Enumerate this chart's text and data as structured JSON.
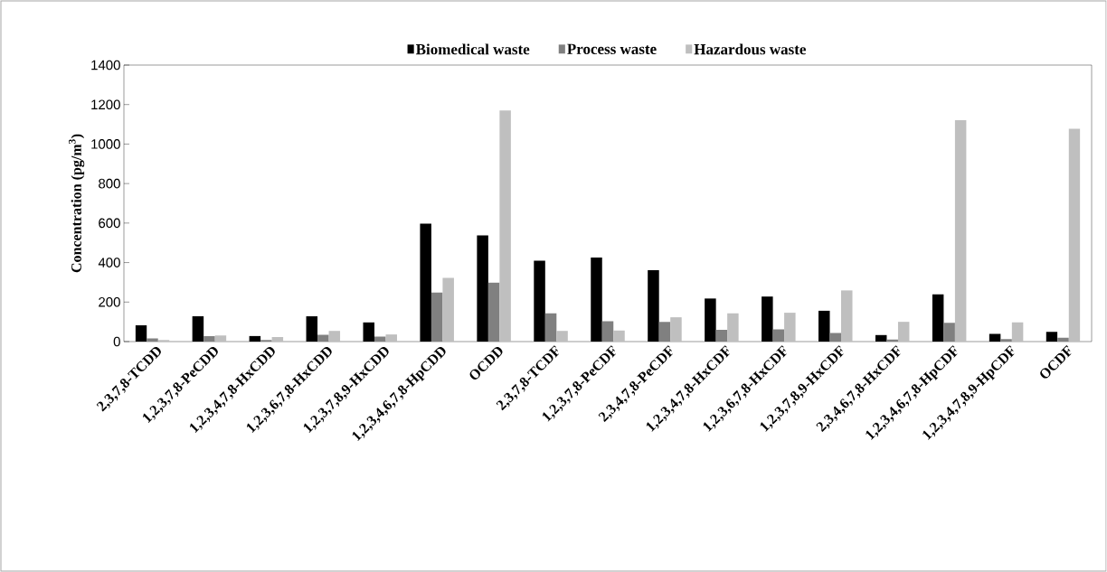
{
  "chart_data": {
    "type": "bar",
    "ylabel": "Concentration (pg/m$^{3}$)",
    "categories": [
      "2,3,7,8-TCDD",
      "1,2,3,7,8-PeCDD",
      "1,2,3,4,7,8-HxCDD",
      "1,2,3,6,7,8-HxCDD",
      "1,2,3,7,8,9-HxCDD",
      "1,2,3,4,6,7,8-HpCDD",
      "OCDD",
      "2,3,7,8-TCDF",
      "1,2,3,7,8-PeCDF",
      "2,3,4,7,8-PeCDF",
      "1,2,3,4,7,8-HxCDF",
      "1,2,3,6,7,8-HxCDF",
      "1,2,3,7,8,9-HxCDF",
      "2,3,4,6,7,8-HxCDF",
      "1,2,3,4,6,7,8-HpCDF",
      "1,2,3,4,7,8,9-HpCDF",
      "OCDF"
    ],
    "series": [
      {
        "name": "Biomedical waste",
        "color": "#000000",
        "values": [
          82,
          128,
          28,
          128,
          97,
          597,
          538,
          410,
          426,
          362,
          218,
          228,
          156,
          33,
          239,
          39,
          49
        ]
      },
      {
        "name": "Process waste",
        "color": "#808080",
        "values": [
          16,
          28,
          8,
          34,
          25,
          248,
          298,
          143,
          103,
          100,
          59,
          62,
          44,
          10,
          95,
          13,
          20
        ]
      },
      {
        "name": "Hazardous waste",
        "color": "#bfbfbf",
        "values": [
          8,
          31,
          23,
          54,
          36,
          323,
          1170,
          54,
          56,
          123,
          143,
          146,
          259,
          100,
          1121,
          97,
          1077
        ]
      }
    ],
    "ylim": [
      0,
      1400
    ],
    "yticks": [
      0,
      200,
      400,
      600,
      800,
      1000,
      1200,
      1400
    ],
    "grid": false,
    "legend": "top"
  }
}
